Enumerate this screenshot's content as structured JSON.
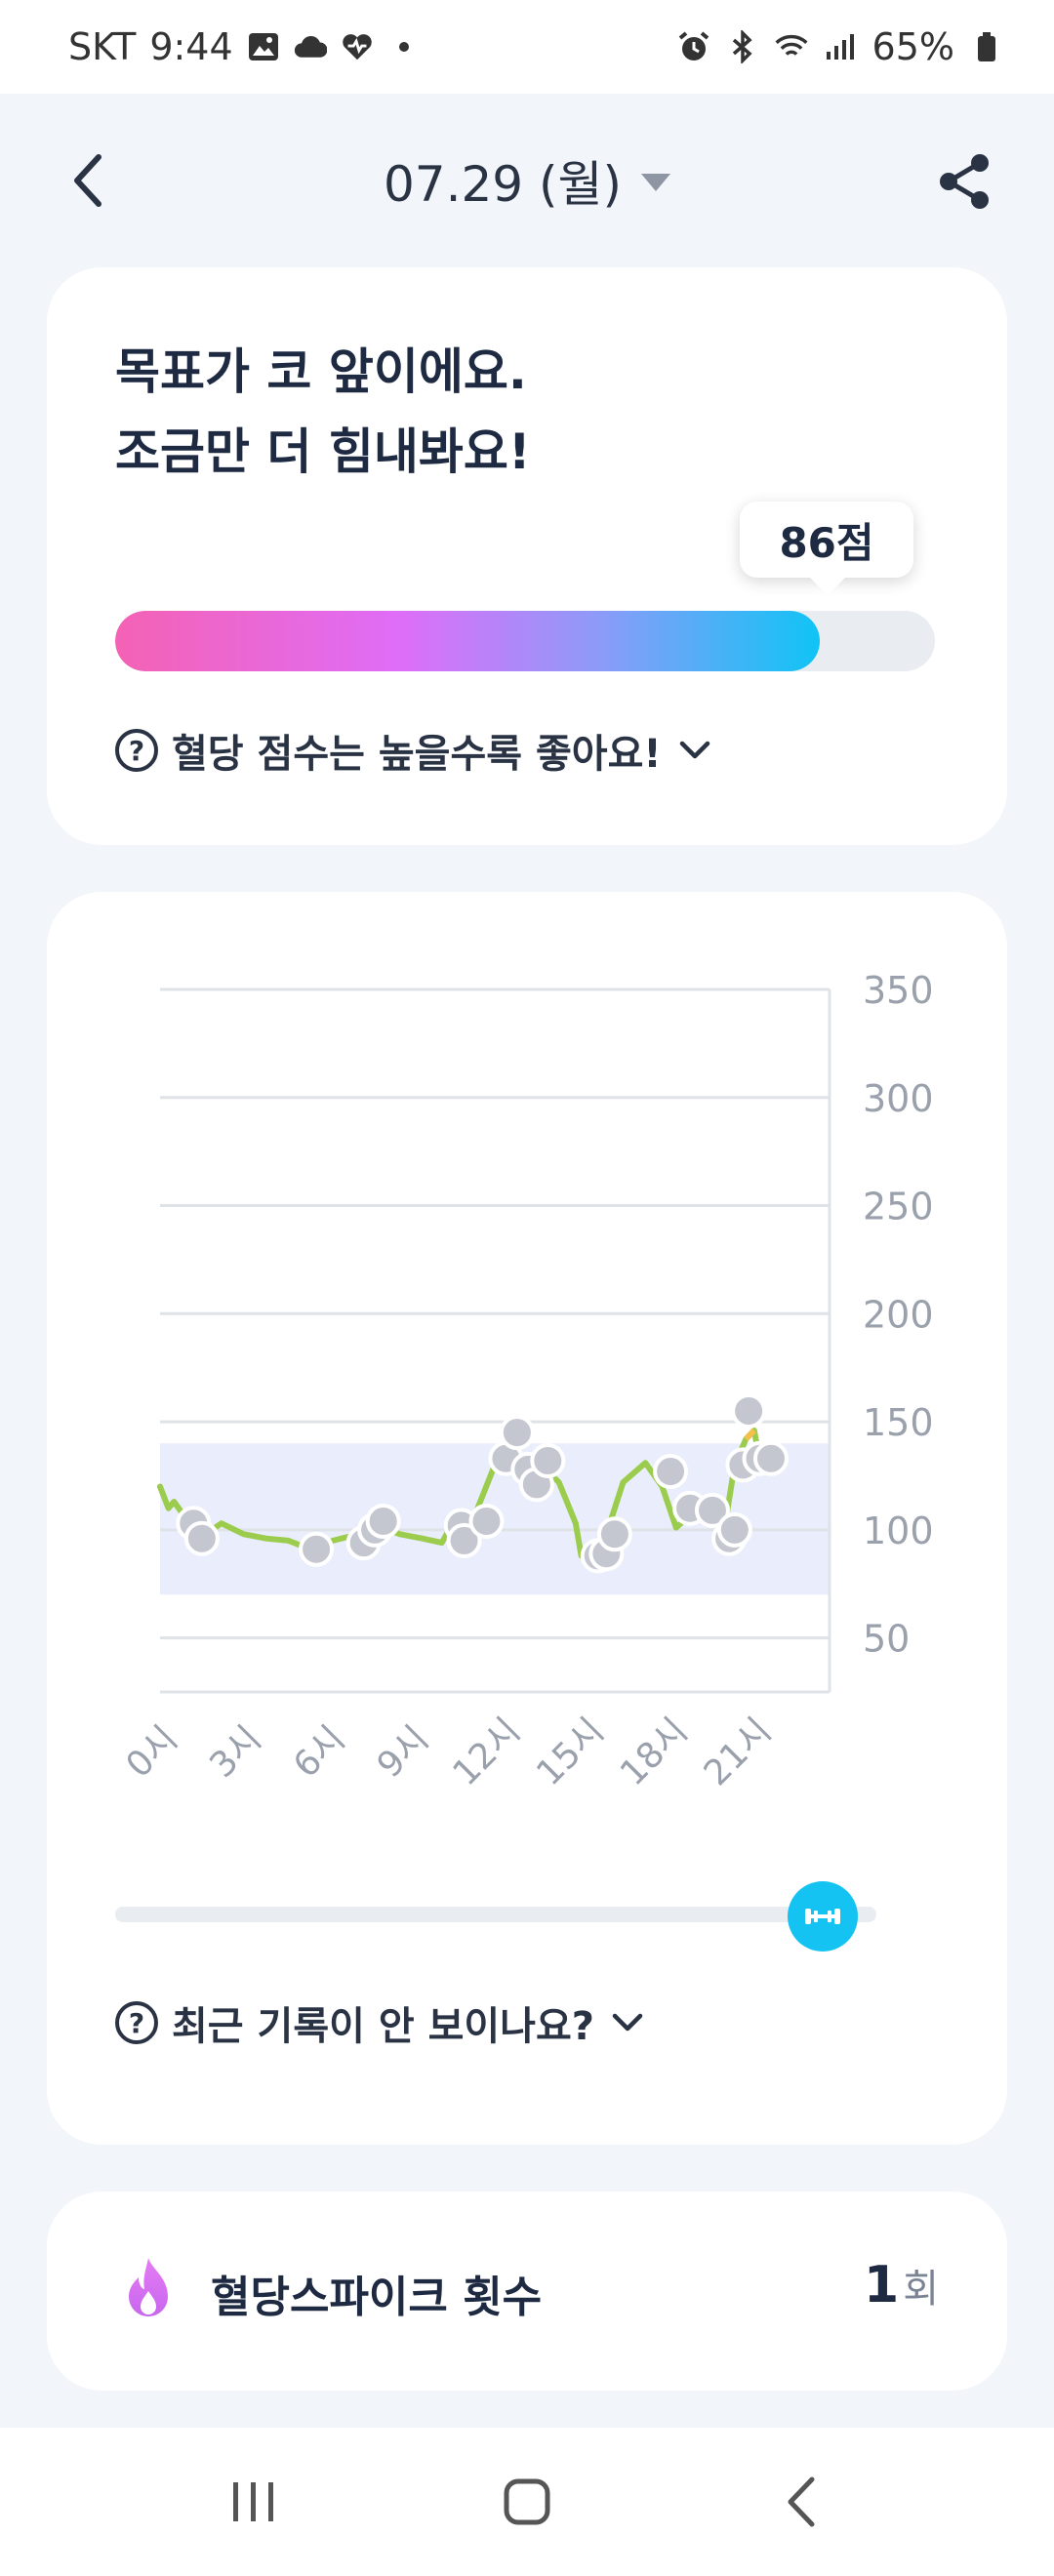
{
  "status_bar": {
    "carrier": "SKT",
    "time": "9:44",
    "battery": "65%",
    "icons": [
      "image-icon",
      "cloud-icon",
      "heart-icon",
      "dot-icon",
      "alarm-icon",
      "bluetooth-icon",
      "wifi-icon",
      "signal-icon",
      "battery-icon"
    ]
  },
  "header": {
    "date_label": "07.29 (월)",
    "icons": [
      "back-arrow-icon",
      "caret-down-icon",
      "share-icon"
    ]
  },
  "score_card": {
    "headline_line1": "목표가 코 앞이에요.",
    "headline_line2": "조금만 더 힘내봐요!",
    "score_label": "86점",
    "score_value": 86,
    "score_max": 100,
    "help_text": "혈당 점수는 높을수록 좋아요!",
    "colors": {
      "gradient_start": "#f462b4",
      "gradient_mid": "#df6df7",
      "gradient_end": "#10c4f5"
    }
  },
  "chart_card": {
    "help_text": "최근 기록이 안 보이나요?",
    "slider_value": 0.93
  },
  "chart_data": {
    "type": "line",
    "y_ticks": [
      "350",
      "300",
      "250",
      "200",
      "150",
      "100",
      "50"
    ],
    "y_tick_values": [
      350,
      300,
      250,
      200,
      150,
      100,
      50
    ],
    "ylim": [
      25,
      350
    ],
    "x_ticks": [
      "0시",
      "3시",
      "6시",
      "9시",
      "12시",
      "15시",
      "18시",
      "21시"
    ],
    "x_tick_values": [
      0,
      3,
      6,
      9,
      12,
      15,
      18,
      21
    ],
    "xlim": [
      0,
      24
    ],
    "target_range": [
      70,
      140
    ],
    "line": [
      [
        0.0,
        120
      ],
      [
        0.3,
        110
      ],
      [
        0.5,
        113
      ],
      [
        1.0,
        104
      ],
      [
        1.4,
        96
      ],
      [
        2.2,
        103
      ],
      [
        3.0,
        98
      ],
      [
        3.8,
        96
      ],
      [
        4.6,
        95
      ],
      [
        5.4,
        91
      ],
      [
        6.2,
        95
      ],
      [
        6.8,
        97
      ],
      [
        7.8,
        102
      ],
      [
        8.6,
        98
      ],
      [
        9.4,
        96
      ],
      [
        10.1,
        94
      ],
      [
        10.4,
        101
      ],
      [
        11.2,
        104
      ],
      [
        12.0,
        130
      ],
      [
        12.6,
        136
      ],
      [
        13.0,
        123
      ],
      [
        13.5,
        132
      ],
      [
        14.3,
        122
      ],
      [
        14.9,
        103
      ],
      [
        15.1,
        88
      ],
      [
        15.5,
        90
      ],
      [
        16.0,
        98
      ],
      [
        16.6,
        122
      ],
      [
        17.4,
        131
      ],
      [
        18.0,
        120
      ],
      [
        18.5,
        101
      ],
      [
        19.1,
        108
      ],
      [
        19.7,
        106
      ],
      [
        20.2,
        98
      ],
      [
        20.6,
        130
      ],
      [
        21.0,
        142
      ],
      [
        21.3,
        146
      ],
      [
        21.5,
        132
      ],
      [
        22.0,
        133
      ]
    ],
    "points": [
      [
        1.2,
        103
      ],
      [
        1.5,
        96
      ],
      [
        5.6,
        91
      ],
      [
        7.3,
        94
      ],
      [
        7.7,
        100
      ],
      [
        8.0,
        104
      ],
      [
        10.8,
        102
      ],
      [
        10.9,
        95
      ],
      [
        11.7,
        104
      ],
      [
        12.4,
        133
      ],
      [
        12.8,
        145
      ],
      [
        13.2,
        128
      ],
      [
        13.5,
        121
      ],
      [
        13.9,
        132
      ],
      [
        15.7,
        88
      ],
      [
        16.0,
        89
      ],
      [
        16.3,
        98
      ],
      [
        18.3,
        127
      ],
      [
        19.0,
        110
      ],
      [
        19.8,
        109
      ],
      [
        20.4,
        96
      ],
      [
        20.6,
        100
      ],
      [
        20.9,
        130
      ],
      [
        21.1,
        155
      ],
      [
        21.5,
        133
      ],
      [
        21.9,
        133
      ]
    ],
    "colors": {
      "line": "#9ccc4e",
      "spike_segment": "#f3c04a",
      "target_band": "#eaeefc",
      "point_fill": "#c4c7cf",
      "grid": "#dfe3e8",
      "tick_text": "#9aa1ad"
    }
  },
  "spike_card": {
    "label": "혈당스파이크 횟수",
    "count": "1",
    "unit": "회",
    "icon": "fire-icon"
  },
  "nav_bar": {
    "icons": [
      "recent-apps-icon",
      "home-icon",
      "back-icon"
    ]
  }
}
